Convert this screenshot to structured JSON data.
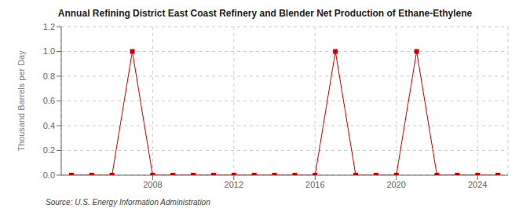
{
  "chart_data": {
    "type": "line",
    "title": "Annual Refining District East Coast Refinery and Blender Net Production of Ethane-Ethylene",
    "y_label": "Thousand Barrels per Day",
    "annotations": [
      "Source: U.S. Energy Information Administration"
    ],
    "x": [
      2004,
      2005,
      2006,
      2007,
      2008,
      2009,
      2010,
      2011,
      2012,
      2013,
      2014,
      2015,
      2016,
      2017,
      2018,
      2019,
      2020,
      2021,
      2022,
      2023,
      2024,
      2025
    ],
    "values": [
      0.0,
      0.0,
      0.0,
      1.0,
      0.0,
      0.0,
      0.0,
      0.0,
      0.0,
      0.0,
      0.0,
      0.0,
      0.0,
      1.0,
      0.0,
      0.0,
      0.0,
      1.0,
      0.0,
      0.0,
      0.0,
      0.0
    ],
    "color": "#cc0000",
    "marker": "square",
    "line_style": "solid",
    "xlim": [
      2003.5,
      2025.5
    ],
    "ylim": [
      0.0,
      1.2
    ],
    "xticks": [
      2008,
      2012,
      2016,
      2020,
      2024
    ],
    "yticks": [
      {
        "value": 0.0,
        "label": "0.0"
      },
      0.2,
      0.4,
      0.6,
      0.8,
      {
        "value": 1.0,
        "label": "1.0"
      },
      1.2
    ],
    "grid": true
  }
}
